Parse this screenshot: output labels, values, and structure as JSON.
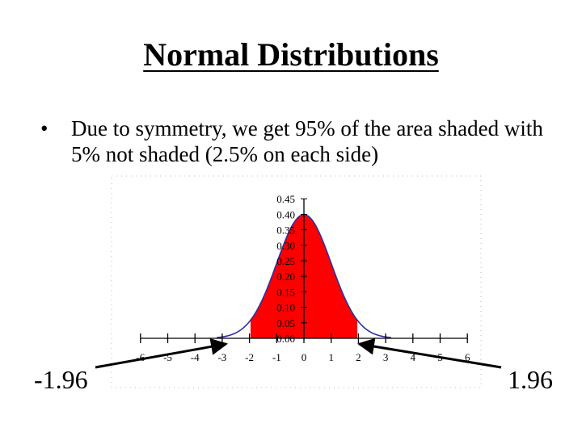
{
  "slide": {
    "title": "Normal Distributions",
    "bullet_marker": "•",
    "bullet": "Due to symmetry, we get 95% of the area shaded with 5% not shaded (2.5% on each side)",
    "left_label": "-1.96",
    "right_label": "1.96"
  },
  "chart_data": {
    "type": "area",
    "distribution": "standard normal",
    "xlim": [
      -6,
      6
    ],
    "ylim": [
      0,
      0.45
    ],
    "x_ticks": [
      "-6",
      "-5",
      "-4",
      "-3",
      "-2",
      "-1",
      "0",
      "1",
      "2",
      "3",
      "4",
      "5",
      "6"
    ],
    "y_ticks": [
      "0.00",
      "0.05",
      "0.10",
      "0.15",
      "0.20",
      "0.25",
      "0.30",
      "0.35",
      "0.40",
      "0.45"
    ],
    "shaded_interval": [
      -1.96,
      1.96
    ],
    "shaded_area_percent": 95,
    "tail_area_percent_each": 2.5,
    "colors": {
      "fill": "#ff0000",
      "curve": "#2f2f9f",
      "axis": "#000000"
    }
  }
}
